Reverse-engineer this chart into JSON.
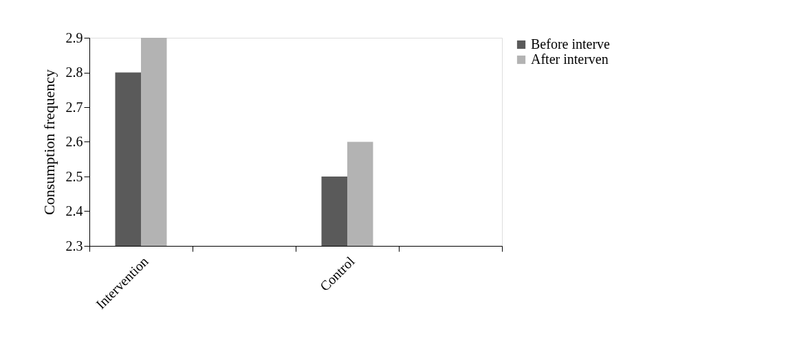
{
  "chart_data": {
    "type": "bar",
    "ylabel": "Consumption frequency",
    "categories": [
      "Intervention",
      null,
      "Control",
      null
    ],
    "series": [
      {
        "name": "Before interve",
        "color": "#5a5a5a",
        "values": [
          2.8,
          null,
          2.5,
          null
        ]
      },
      {
        "name": "After interven",
        "color": "#b3b3b3",
        "values": [
          2.9,
          null,
          2.6,
          null
        ]
      }
    ],
    "ylim": [
      2.3,
      2.9
    ],
    "yticks": [
      2.3,
      2.4,
      2.5,
      2.6,
      2.7,
      2.8,
      2.9
    ],
    "grid": false,
    "legend": "right"
  }
}
